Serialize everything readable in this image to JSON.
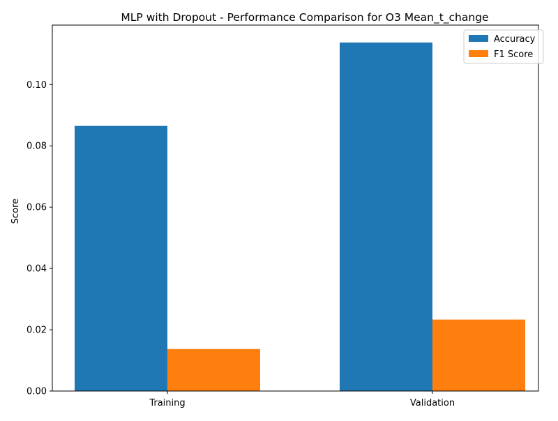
{
  "chart_data": {
    "type": "bar",
    "title": "MLP with Dropout - Performance Comparison for O3 Mean_t_change",
    "xlabel": "",
    "ylabel": "Score",
    "categories": [
      "Training",
      "Validation"
    ],
    "series": [
      {
        "name": "Accuracy",
        "color": "#1f77b4",
        "values": [
          0.0865,
          0.1137
        ]
      },
      {
        "name": "F1 Score",
        "color": "#ff7f0e",
        "values": [
          0.0137,
          0.0233
        ]
      }
    ],
    "ylim": [
      0,
      0.1194
    ],
    "yticks": [
      0.0,
      0.02,
      0.04,
      0.06,
      0.08,
      0.1
    ],
    "ytick_labels": [
      "0.00",
      "0.02",
      "0.04",
      "0.06",
      "0.08",
      "0.10"
    ],
    "grid": false,
    "legend_position": "top-right"
  }
}
